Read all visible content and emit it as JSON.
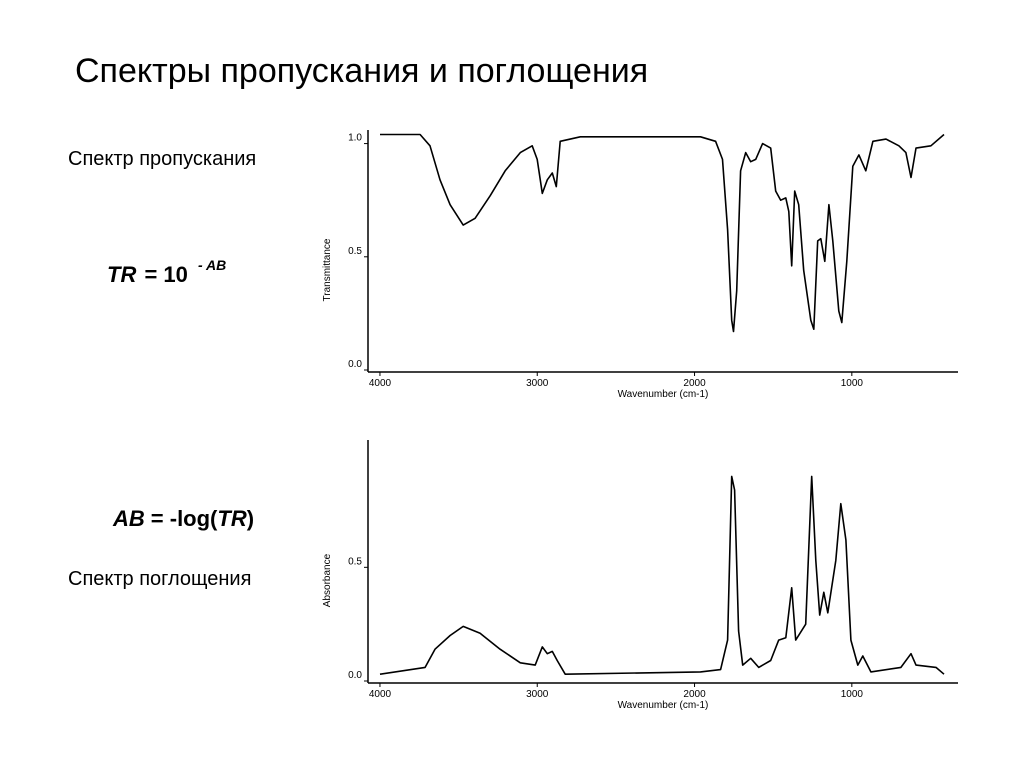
{
  "slide": {
    "title": "Спектры пропускания и поглощения",
    "label_transmission": "Спектр пропускания",
    "label_absorption": "Спектр поглощения",
    "formula_tr": {
      "lhs": "TR",
      "op": "= 10",
      "exponent": "- AB"
    },
    "formula_ab": {
      "lhs": "AB",
      "op": "= -log(",
      "arg": "TR",
      "close": ")"
    }
  },
  "chart_data": [
    {
      "type": "line",
      "y_label": "Transmittance",
      "x_label": "Wavenumber (cm-1)",
      "color": "#000000",
      "xlim": [
        4076,
        325
      ],
      "xticks": [
        4000,
        3000,
        2000,
        1000
      ],
      "ylim": [
        0,
        1.06
      ],
      "yticks": [
        {
          "value": 0,
          "label": "0.0"
        },
        {
          "value": 0.5,
          "label": "0.5"
        },
        {
          "value": 1,
          "label": "1.0"
        }
      ],
      "x": [
        4000,
        3745,
        3682,
        3618,
        3554,
        3471,
        3395,
        3299,
        3204,
        3108,
        3032,
        3000,
        2968,
        2936,
        2904,
        2879,
        2854,
        2726,
        1962,
        1866,
        1822,
        1790,
        1764,
        1752,
        1732,
        1707,
        1675,
        1643,
        1611,
        1567,
        1516,
        1484,
        1452,
        1420,
        1401,
        1382,
        1363,
        1338,
        1306,
        1261,
        1242,
        1217,
        1197,
        1172,
        1146,
        1121,
        1083,
        1064,
        1032,
        994,
        955,
        911,
        866,
        783,
        701,
        656,
        624,
        592,
        497,
        414
      ],
      "values": [
        1.04,
        1.04,
        0.99,
        0.84,
        0.73,
        0.64,
        0.67,
        0.77,
        0.88,
        0.96,
        0.99,
        0.93,
        0.78,
        0.84,
        0.87,
        0.81,
        1.01,
        1.03,
        1.03,
        1.01,
        0.93,
        0.62,
        0.22,
        0.17,
        0.35,
        0.88,
        0.96,
        0.92,
        0.93,
        1.0,
        0.98,
        0.79,
        0.75,
        0.76,
        0.7,
        0.46,
        0.79,
        0.73,
        0.44,
        0.22,
        0.18,
        0.57,
        0.58,
        0.48,
        0.73,
        0.57,
        0.26,
        0.21,
        0.48,
        0.9,
        0.95,
        0.88,
        1.01,
        1.02,
        0.99,
        0.96,
        0.85,
        0.98,
        0.99,
        1.04
      ]
    },
    {
      "type": "line",
      "y_label": "Absorbance",
      "x_label": "Wavenumber (cm-1)",
      "color": "#000000",
      "xlim": [
        4076,
        325
      ],
      "xticks": [
        4000,
        3000,
        2000,
        1000
      ],
      "ylim": [
        0,
        1.06
      ],
      "yticks": [
        {
          "value": 0,
          "label": "0.0"
        },
        {
          "value": 0.5,
          "label": "0.5"
        }
      ],
      "x": [
        4000,
        3713,
        3650,
        3554,
        3471,
        3363,
        3236,
        3108,
        3013,
        2968,
        2936,
        2904,
        2873,
        2822,
        1962,
        1834,
        1790,
        1764,
        1745,
        1720,
        1694,
        1643,
        1592,
        1516,
        1465,
        1420,
        1382,
        1357,
        1293,
        1255,
        1229,
        1204,
        1178,
        1153,
        1102,
        1070,
        1038,
        1006,
        962,
        930,
        879,
        688,
        624,
        592,
        465,
        414
      ],
      "values": [
        0.03,
        0.06,
        0.14,
        0.2,
        0.24,
        0.21,
        0.14,
        0.08,
        0.07,
        0.15,
        0.12,
        0.13,
        0.09,
        0.03,
        0.04,
        0.05,
        0.18,
        0.9,
        0.84,
        0.22,
        0.07,
        0.1,
        0.06,
        0.09,
        0.18,
        0.19,
        0.41,
        0.18,
        0.25,
        0.9,
        0.53,
        0.29,
        0.39,
        0.3,
        0.53,
        0.78,
        0.62,
        0.18,
        0.07,
        0.11,
        0.04,
        0.06,
        0.12,
        0.07,
        0.06,
        0.03
      ]
    }
  ]
}
